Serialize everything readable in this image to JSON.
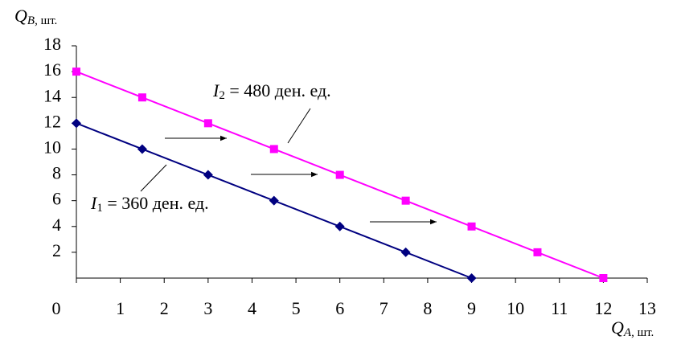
{
  "chart_data": {
    "type": "line",
    "y_label": {
      "symbol": "Q",
      "subscript": "B",
      "unit": ", шт."
    },
    "x_label": {
      "symbol": "Q",
      "subscript": "A",
      "unit": ", шт."
    },
    "xlim": [
      0,
      13
    ],
    "xticks": [
      0,
      1,
      2,
      3,
      4,
      5,
      6,
      7,
      8,
      9,
      10,
      11,
      12,
      13
    ],
    "ylim": [
      0,
      18
    ],
    "yticks": [
      2,
      4,
      6,
      8,
      10,
      12,
      14,
      16,
      18
    ],
    "series": [
      {
        "name": {
          "symbol": "I",
          "subscript": "1",
          "text": " = 360 ден. ед."
        },
        "color": "#000080",
        "marker": "diamond",
        "x": [
          0,
          1.5,
          3,
          4.5,
          6,
          7.5,
          9
        ],
        "values": [
          12,
          10,
          8,
          6,
          4,
          2,
          0
        ]
      },
      {
        "name": {
          "symbol": "I",
          "subscript": "2",
          "text": " = 480 ден. ед."
        },
        "color": "#ff00ff",
        "marker": "square",
        "x": [
          0,
          1.5,
          3,
          4.5,
          6,
          7.5,
          9,
          10.5,
          12
        ],
        "values": [
          16,
          14,
          12,
          10,
          8,
          6,
          4,
          2,
          0
        ]
      }
    ]
  }
}
